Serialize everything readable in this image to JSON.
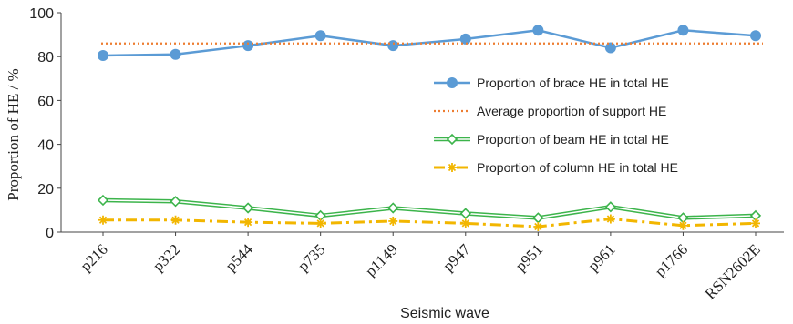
{
  "chart_data": {
    "type": "line",
    "title": "",
    "xlabel": "Seismic wave",
    "ylabel": "Proportion of HE / %",
    "ylim": [
      0,
      100
    ],
    "yticks": [
      0,
      20,
      40,
      60,
      80,
      100
    ],
    "grid": false,
    "legend_position": "right-middle",
    "categories": [
      "p216",
      "p322",
      "p544",
      "p735",
      "p1149",
      "p947",
      "p951",
      "p961",
      "p1766",
      "RSN2602E"
    ],
    "series": [
      {
        "name": "Proportion of brace HE in total HE",
        "values": [
          80.5,
          81,
          85,
          89.5,
          85,
          88,
          92,
          84,
          92,
          89.5
        ],
        "color": "#5b9bd5",
        "style": "solid",
        "marker": "circle"
      },
      {
        "name": "Average proportion of support HE",
        "values": [
          86,
          86,
          86,
          86,
          86,
          86,
          86,
          86,
          86,
          86
        ],
        "color": "#ed7d31",
        "style": "dotted",
        "marker": "none"
      },
      {
        "name": "Proportion of beam HE in total HE",
        "values": [
          14.5,
          14,
          11,
          7.5,
          11,
          8.5,
          6.5,
          11.5,
          6.5,
          7.5
        ],
        "color": "#3cb44b",
        "style": "double",
        "marker": "diamond"
      },
      {
        "name": "Proportion of column HE in total HE",
        "values": [
          5.5,
          5.5,
          4.5,
          4,
          5,
          4,
          2.5,
          6,
          3,
          4
        ],
        "color": "#f2b600",
        "style": "dashdot",
        "marker": "asterisk"
      }
    ]
  }
}
